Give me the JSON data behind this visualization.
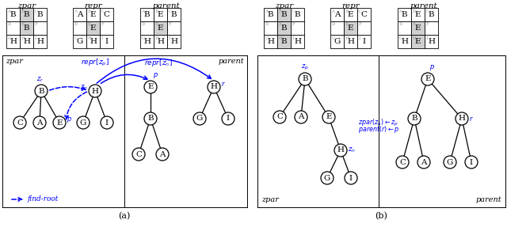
{
  "fig_width": 6.4,
  "fig_height": 2.92,
  "background": "#ffffff",
  "cell": 17,
  "node_r": 8,
  "small_labels": [
    [
      "A",
      "B",
      "C"
    ],
    [
      "D",
      "E",
      "F"
    ],
    [
      "G",
      "H",
      "I"
    ]
  ],
  "grids_a": {
    "zpar": [
      [
        "B",
        "B",
        "B"
      ],
      [
        "",
        "B",
        ""
      ],
      [
        "H",
        "H",
        "H"
      ]
    ],
    "zpar_gray": [
      [
        false,
        true,
        false
      ],
      [
        false,
        true,
        false
      ],
      [
        false,
        false,
        false
      ]
    ],
    "repr": [
      [
        "A",
        "E",
        "C"
      ],
      [
        "",
        "E",
        ""
      ],
      [
        "G",
        "H",
        "I"
      ]
    ],
    "repr_gray": [
      [
        false,
        false,
        false
      ],
      [
        false,
        true,
        false
      ],
      [
        false,
        false,
        false
      ]
    ],
    "parent": [
      [
        "B",
        "E",
        "B"
      ],
      [
        "",
        "E",
        ""
      ],
      [
        "H",
        "H",
        "H"
      ]
    ],
    "parent_gray": [
      [
        false,
        false,
        false
      ],
      [
        false,
        true,
        false
      ],
      [
        false,
        false,
        false
      ]
    ]
  },
  "grids_b": {
    "zpar": [
      [
        "B",
        "B",
        "B"
      ],
      [
        "",
        "B",
        ""
      ],
      [
        "H",
        "B",
        "H"
      ]
    ],
    "zpar_gray": [
      [
        false,
        true,
        false
      ],
      [
        false,
        true,
        false
      ],
      [
        false,
        true,
        false
      ]
    ],
    "repr": [
      [
        "A",
        "E",
        "C"
      ],
      [
        "",
        "E",
        ""
      ],
      [
        "G",
        "H",
        "I"
      ]
    ],
    "repr_gray": [
      [
        false,
        false,
        false
      ],
      [
        false,
        true,
        false
      ],
      [
        false,
        false,
        false
      ]
    ],
    "parent": [
      [
        "B",
        "E",
        "B"
      ],
      [
        "",
        "E",
        ""
      ],
      [
        "H",
        "E",
        "H"
      ]
    ],
    "parent_gray": [
      [
        false,
        false,
        false
      ],
      [
        false,
        true,
        false
      ],
      [
        false,
        true,
        false
      ]
    ]
  }
}
